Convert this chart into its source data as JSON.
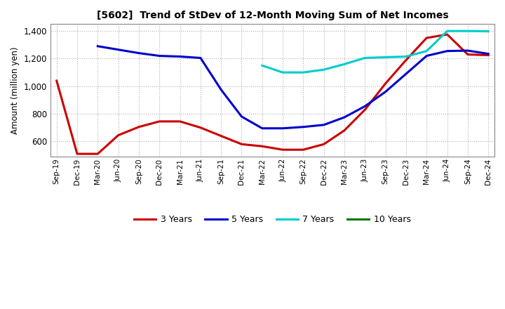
{
  "title": "[5602]  Trend of StDev of 12-Month Moving Sum of Net Incomes",
  "ylabel": "Amount (million yen)",
  "background_color": "#ffffff",
  "grid_color": "#b0b0b0",
  "ylim": [
    490,
    1450
  ],
  "yticks": [
    600,
    800,
    1000,
    1200,
    1400
  ],
  "x_labels": [
    "Sep-19",
    "Dec-19",
    "Mar-20",
    "Jun-20",
    "Sep-20",
    "Dec-20",
    "Mar-21",
    "Jun-21",
    "Sep-21",
    "Dec-21",
    "Mar-22",
    "Jun-22",
    "Sep-22",
    "Dec-22",
    "Mar-23",
    "Jun-23",
    "Sep-23",
    "Dec-23",
    "Mar-24",
    "Jun-24",
    "Sep-24",
    "Dec-24"
  ],
  "series": {
    "3 Years": {
      "color": "#cc0000",
      "data_x": [
        0,
        1,
        2,
        3,
        4,
        5,
        6,
        7,
        8,
        9,
        10,
        11,
        12,
        13,
        14,
        15,
        16,
        17,
        18,
        19,
        20,
        21
      ],
      "data_y": [
        1040,
        510,
        510,
        645,
        705,
        745,
        745,
        700,
        640,
        580,
        565,
        540,
        540,
        580,
        680,
        830,
        1020,
        1190,
        1350,
        1375,
        1230,
        1225
      ]
    },
    "5 Years": {
      "color": "#0000cc",
      "data_x": [
        2,
        3,
        4,
        5,
        6,
        7,
        8,
        9,
        10,
        11,
        12,
        13,
        14,
        15,
        16,
        17,
        18,
        19,
        20,
        21
      ],
      "data_y": [
        1290,
        1265,
        1240,
        1220,
        1215,
        1205,
        975,
        780,
        695,
        695,
        705,
        720,
        775,
        855,
        960,
        1090,
        1220,
        1255,
        1258,
        1235
      ]
    },
    "7 Years": {
      "color": "#00cccc",
      "data_x": [
        10,
        11,
        12,
        13,
        14,
        15,
        16,
        17,
        18,
        19,
        20,
        21
      ],
      "data_y": [
        1150,
        1100,
        1100,
        1120,
        1160,
        1205,
        1210,
        1215,
        1255,
        1400,
        1400,
        1398
      ]
    },
    "10 Years": {
      "color": "#007700",
      "data_x": [],
      "data_y": []
    }
  },
  "legend_order": [
    "3 Years",
    "5 Years",
    "7 Years",
    "10 Years"
  ]
}
